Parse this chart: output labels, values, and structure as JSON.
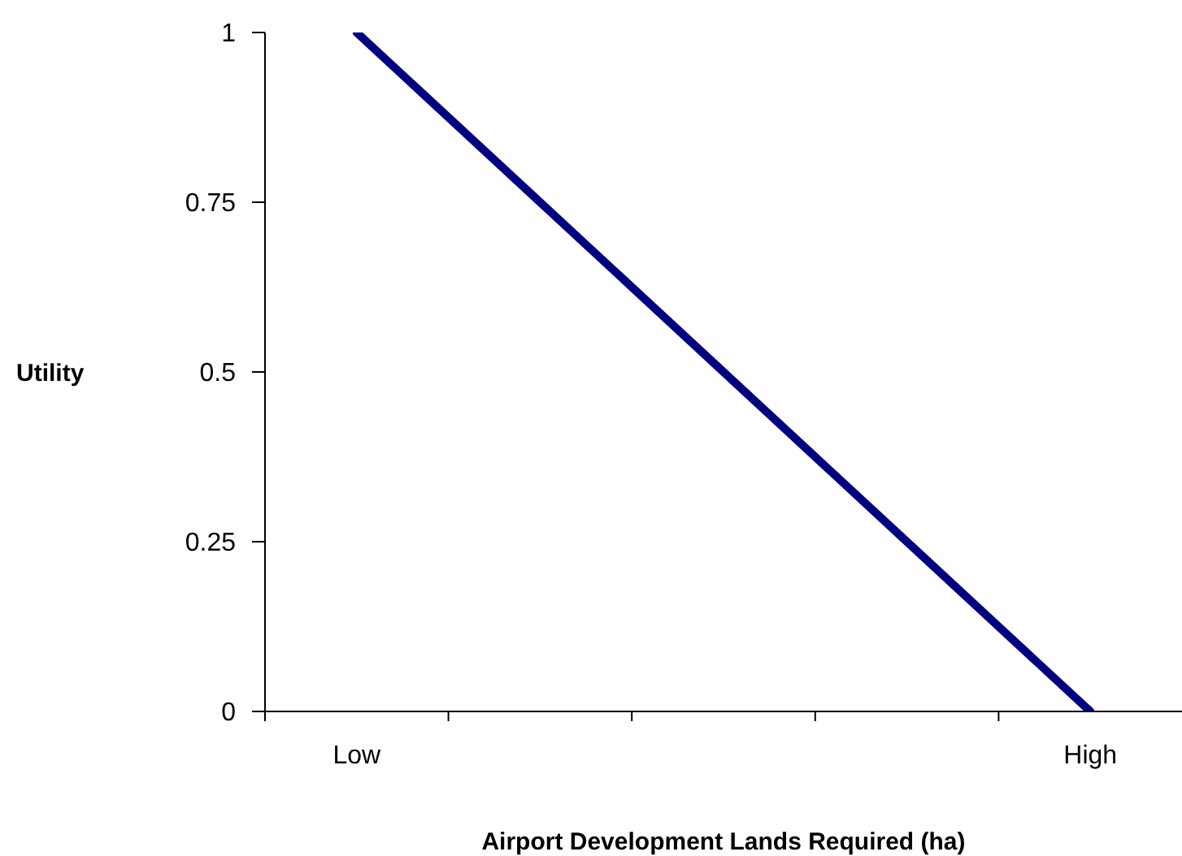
{
  "chart_data": {
    "type": "line",
    "xlabel": "Airport Development Lands Required (ha)",
    "ylabel": "Utility",
    "categories": [
      "Low",
      null,
      null,
      null,
      "High"
    ],
    "series": [
      {
        "color": "#000080",
        "values": [
          1,
          0.75,
          0.5,
          0.25,
          0
        ]
      }
    ],
    "ylim": [
      0,
      1
    ],
    "yticks": [
      0,
      0.25,
      0.5,
      0.75,
      1
    ],
    "marker": "none",
    "line_style": "solid"
  }
}
